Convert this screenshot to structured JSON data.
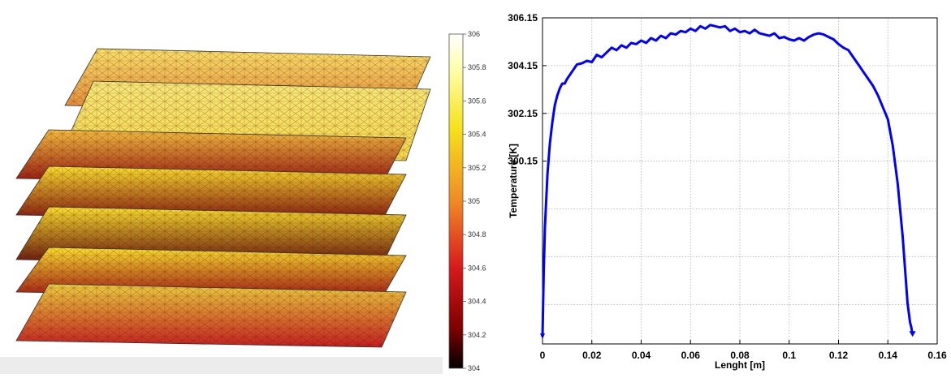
{
  "chart_data": [
    {
      "type": "heatmap",
      "description_type": "3d-mesh-temperature-field",
      "colormap": [
        "#000000",
        "#8b0000",
        "#d7191c",
        "#f08a24",
        "#f5e31b",
        "#ffffcc",
        "#ffffff"
      ],
      "colorbar": {
        "min": 304,
        "max": 306,
        "ticks": [
          "306",
          "305.8",
          "305.6",
          "305.4",
          "305.2",
          "305",
          "304.8",
          "304.6",
          "304.4",
          "304.2",
          "304"
        ],
        "tick_values": [
          306,
          305.8,
          305.6,
          305.4,
          305.2,
          305,
          304.8,
          304.6,
          304.4,
          304.2,
          304
        ]
      }
    },
    {
      "type": "line",
      "xlabel": "Lenght [m]",
      "ylabel": "Temperature [K]",
      "xlim": [
        0,
        0.16
      ],
      "ylim": [
        292.5,
        306.15
      ],
      "xticks": [
        "0",
        "0.02",
        "0.04",
        "0.06",
        "0.08",
        "0.1",
        "0.12",
        "0.14",
        "0.16"
      ],
      "xtick_values": [
        0,
        0.02,
        0.04,
        0.06,
        0.08,
        0.1,
        0.12,
        0.14,
        0.16
      ],
      "yticks": [
        "306.15",
        "304.15",
        "302.15",
        "300.15"
      ],
      "ytick_values": [
        306.15,
        304.15,
        302.15,
        300.15
      ],
      "grid": true,
      "line_color": "#0000ff",
      "series": [
        {
          "x": [
            0,
            0.0005,
            0.001,
            0.002,
            0.003,
            0.004,
            0.005,
            0.006,
            0.007,
            0.008,
            0.009,
            0.01,
            0.012,
            0.014,
            0.016,
            0.018,
            0.02,
            0.022,
            0.024,
            0.026,
            0.028,
            0.03,
            0.032,
            0.034,
            0.036,
            0.038,
            0.04,
            0.042,
            0.044,
            0.046,
            0.048,
            0.05,
            0.052,
            0.054,
            0.056,
            0.058,
            0.06,
            0.062,
            0.064,
            0.066,
            0.068,
            0.07,
            0.072,
            0.074,
            0.076,
            0.078,
            0.08,
            0.082,
            0.084,
            0.086,
            0.088,
            0.09,
            0.092,
            0.094,
            0.096,
            0.098,
            0.1,
            0.102,
            0.104,
            0.106,
            0.108,
            0.11,
            0.112,
            0.114,
            0.116,
            0.118,
            0.12,
            0.122,
            0.124,
            0.126,
            0.128,
            0.13,
            0.132,
            0.134,
            0.136,
            0.138,
            0.14,
            0.142,
            0.144,
            0.146,
            0.147,
            0.148,
            0.149,
            0.1495,
            0.15
          ],
          "y": [
            292.8,
            295.5,
            297.4,
            299.6,
            300.9,
            301.8,
            302.5,
            302.9,
            303.2,
            303.4,
            303.4,
            303.6,
            303.9,
            304.2,
            304.25,
            304.35,
            304.3,
            304.6,
            304.5,
            304.7,
            304.9,
            304.8,
            305.0,
            304.9,
            305.1,
            305.05,
            305.2,
            305.1,
            305.3,
            305.2,
            305.4,
            305.3,
            305.5,
            305.45,
            305.6,
            305.55,
            305.7,
            305.6,
            305.8,
            305.7,
            305.85,
            305.8,
            305.75,
            305.8,
            305.6,
            305.7,
            305.55,
            305.6,
            305.5,
            305.65,
            305.5,
            305.45,
            305.4,
            305.5,
            305.3,
            305.35,
            305.25,
            305.2,
            305.3,
            305.2,
            305.35,
            305.45,
            305.5,
            305.45,
            305.35,
            305.25,
            305.05,
            304.9,
            304.8,
            304.5,
            304.2,
            303.9,
            303.6,
            303.3,
            302.9,
            302.4,
            301.9,
            300.8,
            299.2,
            297.0,
            295.6,
            294.2,
            293.4,
            293.2,
            292.9
          ]
        }
      ]
    }
  ]
}
